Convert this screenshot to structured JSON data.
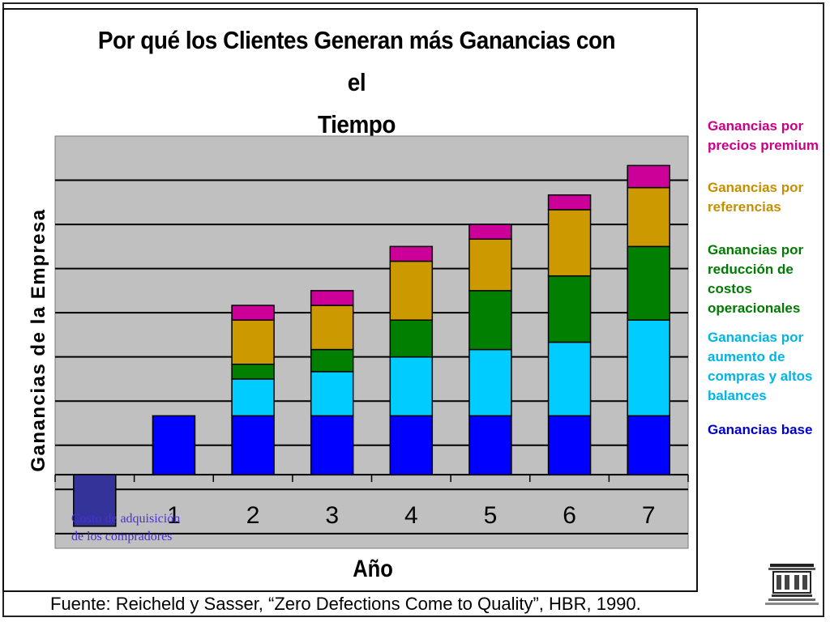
{
  "title_line1": "Por qué los Clientes Generan más Ganancias  con el",
  "title_line2": "Tiempo",
  "ylabel": "Ganancias de la Empresa",
  "xlabel": "Año",
  "acquisition_note": "Costo de adquisición de los compradores",
  "source": "Fuente: Reicheld y Sasser, “Zero Defections Come to Quality”, HBR, 1990.",
  "legend": [
    {
      "label": "Ganancias por precios premium",
      "color": "#cc0088"
    },
    {
      "label": "Ganancias por referencias",
      "color": "#c49000"
    },
    {
      "label": "Ganancias por reducción de costos operacionales",
      "color": "#007a00"
    },
    {
      "label": "Ganancias por aumento de compras y altos balances",
      "color": "#00b4e6"
    },
    {
      "label": "Ganancias base",
      "color": "#0000cc"
    }
  ],
  "chart_data": {
    "type": "bar",
    "stacked": true,
    "categories": [
      "",
      "1",
      "2",
      "3",
      "4",
      "5",
      "6",
      "7"
    ],
    "grid": true,
    "series": [
      {
        "name": "Ganancias base",
        "color": "#0000ff",
        "values": [
          0,
          1.2,
          1.2,
          1.2,
          1.2,
          1.2,
          1.2,
          1.2
        ]
      },
      {
        "name": "Ganancias por aumento de compras y altos balances",
        "color": "#00ccff",
        "values": [
          0,
          0,
          0.75,
          0.9,
          1.2,
          1.35,
          1.5,
          1.95
        ]
      },
      {
        "name": "Ganancias por reducción de costos operacionales",
        "color": "#007f00",
        "values": [
          0,
          0,
          0.3,
          0.45,
          0.75,
          1.2,
          1.35,
          1.5
        ]
      },
      {
        "name": "Ganancias por referencias",
        "color": "#cc9900",
        "values": [
          0,
          0,
          0.9,
          0.9,
          1.2,
          1.05,
          1.35,
          1.2
        ]
      },
      {
        "name": "Ganancias por precios premium",
        "color": "#cc0099",
        "values": [
          0,
          0,
          0.3,
          0.3,
          0.3,
          0.3,
          0.3,
          0.45
        ]
      }
    ],
    "acquisition_cost": {
      "category": "",
      "value": -1.05,
      "color": "#333399"
    },
    "ylim": [
      -1.5,
      6.9
    ]
  }
}
